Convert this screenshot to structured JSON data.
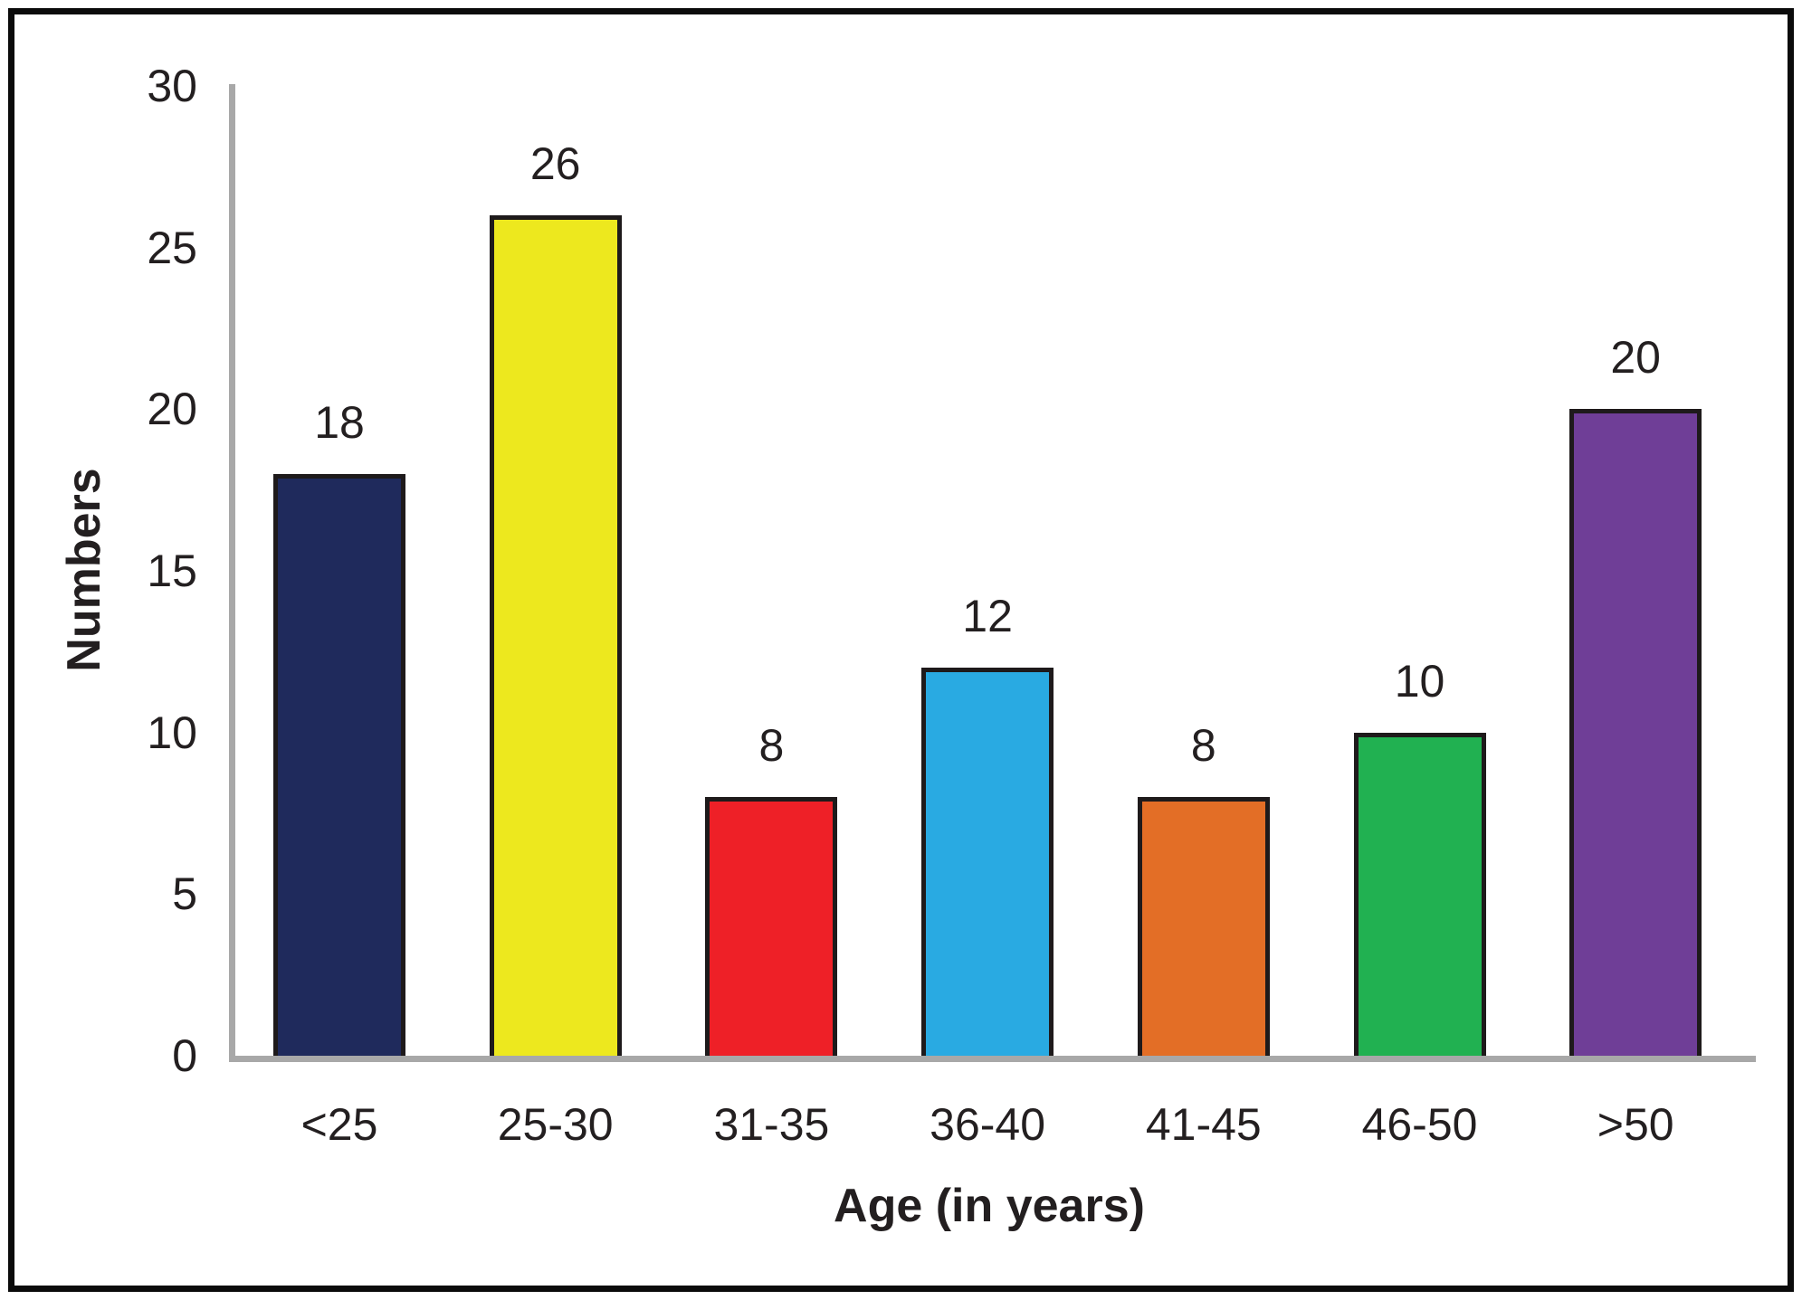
{
  "figure": {
    "background": "#FFFFFF",
    "frame_color": "#0B0B0B"
  },
  "chart_data": {
    "type": "bar",
    "title": "",
    "categories": [
      "<25",
      "25-30",
      "31-35",
      "36-40",
      "41-45",
      "46-50",
      ">50"
    ],
    "values": [
      18,
      26,
      8,
      12,
      8,
      10,
      20
    ],
    "value_labels": [
      "18",
      "26",
      "8",
      "12",
      "8",
      "10",
      "20"
    ],
    "bar_colors": [
      "#1F2A5C",
      "#EDE81E",
      "#EE2027",
      "#29AAE2",
      "#E36E26",
      "#21B151",
      "#6F3E97"
    ],
    "bar_border_color": "#1E1A1B",
    "axis_color": "#A8A8A8",
    "text_color": "#231F20",
    "xlabel": "Age (in years)",
    "ylabel": "Numbers",
    "ylim": [
      0,
      30
    ],
    "yticks": [
      "0",
      "5",
      "10",
      "15",
      "20",
      "25",
      "30"
    ],
    "grid": false,
    "legend_position": "none",
    "value_labels_shown": true
  }
}
